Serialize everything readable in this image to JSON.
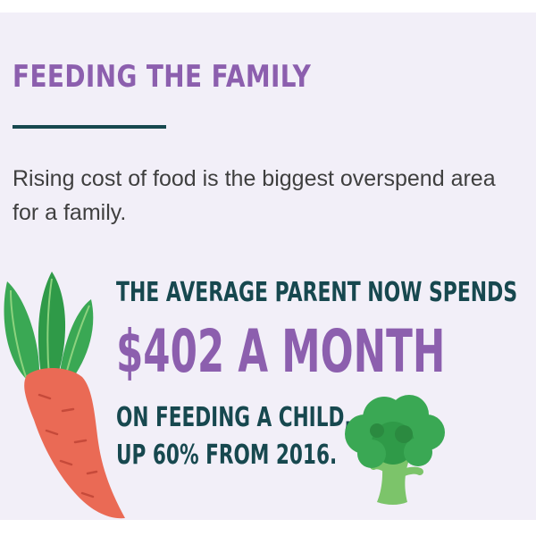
{
  "header": {
    "title": "FEEDING THE FAMILY"
  },
  "intro": {
    "text": "Rising cost of food is the biggest overspend area for a family."
  },
  "stat": {
    "lead": "THE AVERAGE PARENT NOW SPENDS",
    "amount": "$402 A MONTH",
    "tail_line1": "ON FEEDING A CHILD,",
    "tail_line2": "UP 60% FROM 2016."
  },
  "illustrations": {
    "left": "carrot-icon",
    "right": "broccoli-icon"
  },
  "colors": {
    "background": "#f2eff8",
    "accent_purple": "#8c5fae",
    "dark_teal": "#17484f",
    "body_text": "#3f3f3f",
    "carrot_orange": "#ea6a55",
    "leaf_green": "#3aa854"
  }
}
